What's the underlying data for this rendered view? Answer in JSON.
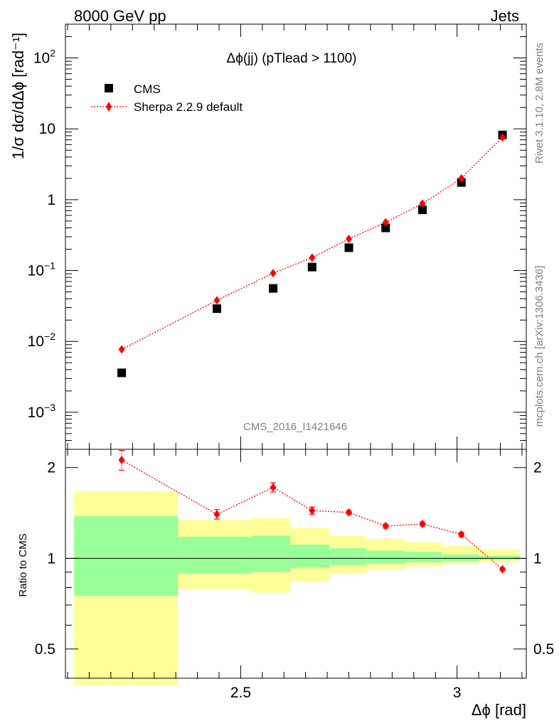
{
  "header": {
    "left": "8000 GeV pp",
    "right": "Jets"
  },
  "side": {
    "rivet": "Rivet 3.1.10,  2.8M events",
    "source": "mcplots.cern.ch [arXiv:1306.3436]"
  },
  "colors": {
    "mc": "#ff0000",
    "data": "#000000",
    "band_outer": "#ffff99",
    "band_inner": "#99ff99",
    "watermark": "#808080"
  },
  "chart_data": [
    {
      "type": "scatter",
      "panel": "main",
      "title": "Δϕ(jj) (pTlead >  1100)",
      "ylabel": "1/σ dσ/dΔϕ [rad⁻¹]",
      "yscale": "log",
      "xlim": [
        2.095,
        3.16
      ],
      "ylim": [
        0.0003,
        300
      ],
      "y_ticks": [
        {
          "v": 0.001,
          "b": "10",
          "e": "−3"
        },
        {
          "v": 0.01,
          "b": "10",
          "e": "−2"
        },
        {
          "v": 0.1,
          "b": "10",
          "e": "−1"
        },
        {
          "v": 1,
          "b": "1",
          "e": ""
        },
        {
          "v": 10,
          "b": "10",
          "e": ""
        },
        {
          "v": 100,
          "b": "10",
          "e": "2"
        }
      ],
      "watermark": "CMS_2016_I1421646",
      "legend": {
        "position": "top-left",
        "entries": [
          "CMS",
          "Sherpa 2.2.9 default"
        ]
      },
      "series": [
        {
          "name": "CMS",
          "marker": "square",
          "x": [
            2.225,
            2.445,
            2.575,
            2.665,
            2.75,
            2.835,
            2.92,
            3.01,
            3.105
          ],
          "y": [
            0.0036,
            0.029,
            0.056,
            0.112,
            0.21,
            0.4,
            0.72,
            1.75,
            8.2
          ]
        },
        {
          "name": "Sherpa 2.2.9 default",
          "marker": "diamond",
          "line": "dotted",
          "x": [
            2.225,
            2.445,
            2.575,
            2.665,
            2.75,
            2.835,
            2.92,
            3.01,
            3.105
          ],
          "y": [
            0.0077,
            0.038,
            0.092,
            0.152,
            0.28,
            0.48,
            0.88,
            2.0,
            7.6
          ]
        }
      ]
    },
    {
      "type": "scatter",
      "panel": "ratio",
      "ylabel": "Ratio to CMS",
      "xlabel": "Δϕ [rad]",
      "xlim": [
        2.095,
        3.16
      ],
      "ylim": [
        0.4,
        2.3
      ],
      "y_ticks": [
        0.5,
        1,
        2
      ],
      "y_tick_labels": [
        "0.5",
        "1",
        "2"
      ],
      "x_ticks": [
        2.5,
        3
      ],
      "x_tick_labels": [
        "2.5",
        "3"
      ],
      "reference_line": 1,
      "bands": [
        {
          "x0": 2.115,
          "x1": 2.355,
          "outer": [
            0.38,
            1.67
          ],
          "inner": [
            0.75,
            1.38
          ]
        },
        {
          "x0": 2.355,
          "x1": 2.525,
          "outer": [
            0.79,
            1.34
          ],
          "inner": [
            0.89,
            1.18
          ]
        },
        {
          "x0": 2.525,
          "x1": 2.615,
          "outer": [
            0.77,
            1.36
          ],
          "inner": [
            0.9,
            1.19
          ]
        },
        {
          "x0": 2.615,
          "x1": 2.705,
          "outer": [
            0.84,
            1.26
          ],
          "inner": [
            0.93,
            1.11
          ]
        },
        {
          "x0": 2.705,
          "x1": 2.79,
          "outer": [
            0.89,
            1.19
          ],
          "inner": [
            0.95,
            1.08
          ]
        },
        {
          "x0": 2.79,
          "x1": 2.88,
          "outer": [
            0.92,
            1.16
          ],
          "inner": [
            0.96,
            1.06
          ]
        },
        {
          "x0": 2.88,
          "x1": 2.965,
          "outer": [
            0.94,
            1.13
          ],
          "inner": [
            0.97,
            1.05
          ]
        },
        {
          "x0": 2.965,
          "x1": 3.05,
          "outer": [
            0.96,
            1.1
          ],
          "inner": [
            0.98,
            1.03
          ]
        },
        {
          "x0": 3.05,
          "x1": 3.145,
          "outer": [
            0.97,
            1.07
          ],
          "inner": [
            0.99,
            1.02
          ]
        }
      ],
      "series": [
        {
          "name": "Sherpa 2.2.9 default / CMS",
          "x": [
            2.225,
            2.445,
            2.575,
            2.665,
            2.75,
            2.835,
            2.92,
            3.01,
            3.105
          ],
          "y": [
            2.12,
            1.4,
            1.72,
            1.44,
            1.42,
            1.28,
            1.3,
            1.2,
            0.92
          ],
          "yerr": [
            0.16,
            0.05,
            0.06,
            0.04,
            0.02,
            0.02,
            0.02,
            0.02,
            0.01
          ]
        }
      ]
    }
  ]
}
